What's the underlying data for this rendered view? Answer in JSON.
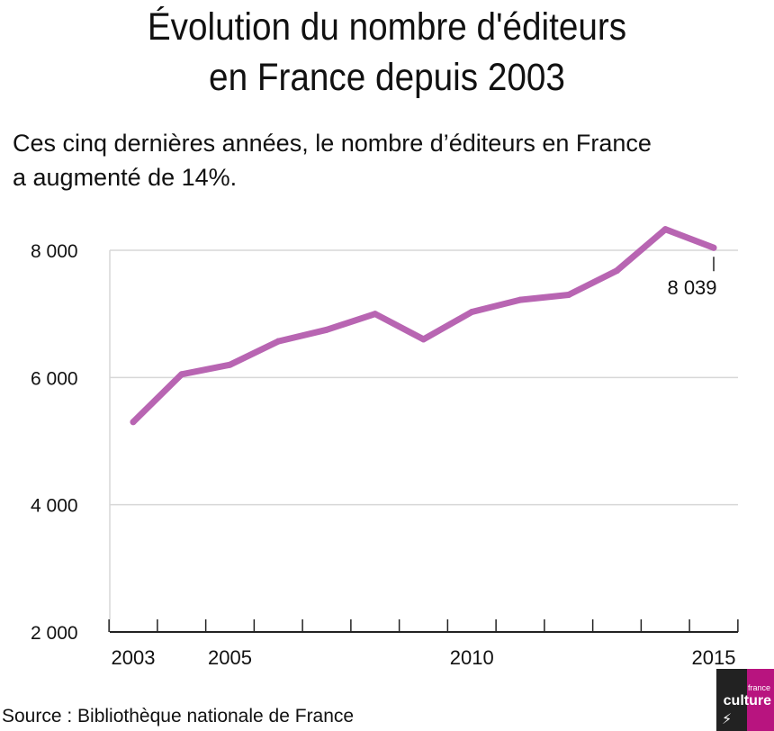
{
  "title_lines": [
    "Évolution du nombre d'éditeurs",
    "en France depuis 2003"
  ],
  "subtitle_lines": [
    "Ces cinq dernières années, le nombre d’éditeurs en France",
    "a augmenté de 14%."
  ],
  "source": "Source : Bibliothèque nationale de France",
  "logo": {
    "small": "france",
    "big": "culture",
    "mark": "⚡"
  },
  "colors": {
    "line": "#b865b2",
    "grid": "#d7d7d7",
    "axis": "#222222",
    "brand": "#b8147f"
  },
  "chart_data": {
    "type": "line",
    "title": "Évolution du nombre d'éditeurs en France depuis 2003",
    "subtitle": "Ces cinq dernières années, le nombre d’éditeurs en France a augmenté de 14%.",
    "x": [
      2003,
      2004,
      2005,
      2006,
      2007,
      2008,
      2009,
      2010,
      2011,
      2012,
      2013,
      2014,
      2015
    ],
    "series": [
      {
        "values": [
          5300,
          6050,
          6200,
          6570,
          6750,
          7000,
          6600,
          7030,
          7220,
          7300,
          7680,
          8330,
          8039
        ]
      }
    ],
    "ylim": [
      2000,
      8000
    ],
    "xlim": [
      2003,
      2015
    ],
    "yticks": [
      2000,
      4000,
      6000,
      8000
    ],
    "ytick_labels": [
      "2 000",
      "4 000",
      "6 000",
      "8 000"
    ],
    "xtick_labels": [
      {
        "x": 2003,
        "label": "2003"
      },
      {
        "x": 2005,
        "label": "2005"
      },
      {
        "x": 2010,
        "label": "2010"
      },
      {
        "x": 2015,
        "label": "2015"
      }
    ],
    "annotation": {
      "x": 2015,
      "label": "8 039"
    },
    "grid": true,
    "xlabel": "",
    "ylabel": ""
  }
}
